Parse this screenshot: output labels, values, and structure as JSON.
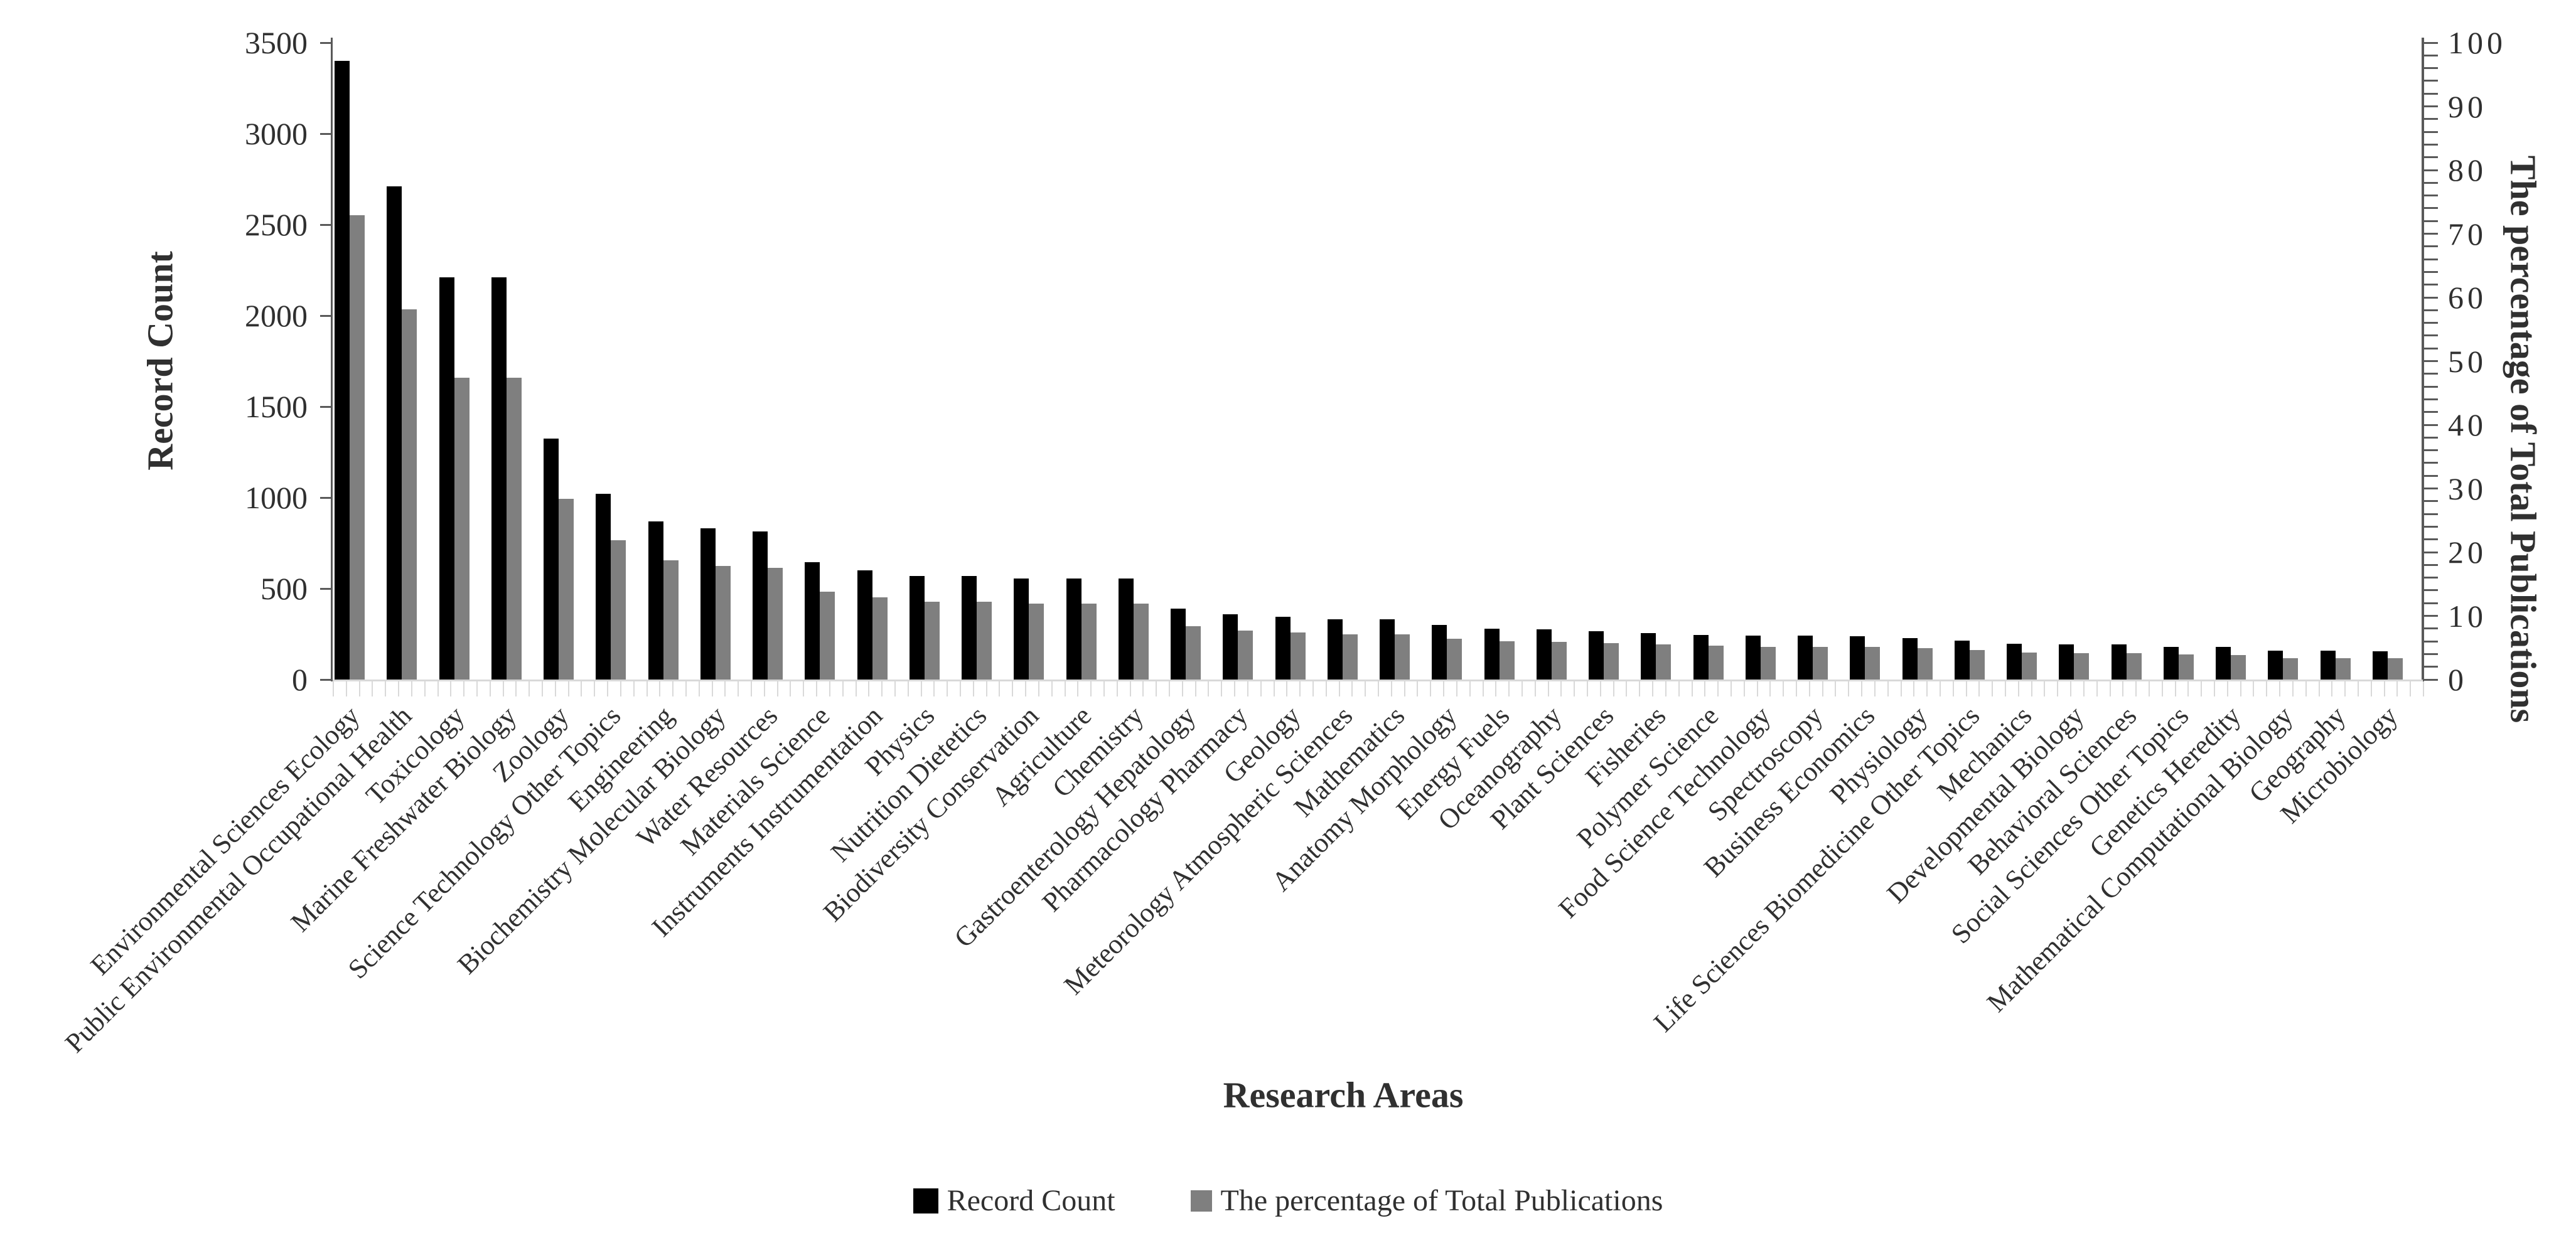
{
  "colors": {
    "record_count_bar": "#000000",
    "percentage_bar": "#7f7f7f",
    "axis": "#595959",
    "baseline": "#d9d9d9",
    "text": "#303030"
  },
  "chart_data": {
    "type": "bar",
    "title": "",
    "xlabel": "Research Areas",
    "ylabel_left": "Record Count",
    "ylabel_right": "The percentage of Total Publications",
    "left_axis": {
      "min": 0,
      "max": 3500,
      "step": 500,
      "tick_labels": [
        "0",
        "500",
        "1000",
        "1500",
        "2000",
        "2500",
        "3000",
        "3500"
      ]
    },
    "right_axis": {
      "min": 0,
      "max": 100,
      "step": 10,
      "minor_step": 2,
      "tick_labels": [
        "0",
        "10",
        "20",
        "30",
        "40",
        "50",
        "60",
        "70",
        "80",
        "90",
        "100"
      ]
    },
    "grid": false,
    "legend_position": "bottom",
    "categories": [
      "Environmental Sciences Ecology",
      "Public Environmental Occupational Health",
      "Toxicology",
      "Marine Freshwater Biology",
      "Zoology",
      "Science Technology Other Topics",
      "Engineering",
      "Biochemistry Molecular Biology",
      "Water Resources",
      "Materials Science",
      "Instruments Instrumentation",
      "Physics",
      "Nutrition Dietetics",
      "Biodiversity Conservation",
      "Agriculture",
      "Chemistry",
      "Gastroenterology Hepatology",
      "Pharmacology Pharmacy",
      "Geology",
      "Meteorology Atmospheric Sciences",
      "Mathematics",
      "Anatomy Morphology",
      "Energy Fuels",
      "Oceanography",
      "Plant Sciences",
      "Fisheries",
      "Polymer Science",
      "Food Science Technology",
      "Spectroscopy",
      "Business Economics",
      "Physiology",
      "Life Sciences Biomedicine Other Topics",
      "Mechanics",
      "Developmental Biology",
      "Behavioral Sciences",
      "Social Sciences Other Topics",
      "Genetics Heredity",
      "Mathematical Computational Biology",
      "Geography",
      "Microbiology"
    ],
    "series": [
      {
        "name": "Record Count",
        "axis": "left",
        "color": "#000000",
        "values": [
          3400,
          2710,
          2210,
          2210,
          1325,
          1020,
          870,
          830,
          815,
          645,
          600,
          570,
          570,
          555,
          555,
          555,
          390,
          360,
          345,
          330,
          330,
          300,
          280,
          275,
          265,
          255,
          245,
          240,
          240,
          238,
          228,
          215,
          195,
          193,
          193,
          180,
          178,
          160,
          158,
          157
        ]
      },
      {
        "name": "The percentage of Total Publications",
        "axis": "right",
        "color": "#7f7f7f",
        "values": [
          72.9,
          58.1,
          47.4,
          47.4,
          28.4,
          21.9,
          18.7,
          17.8,
          17.5,
          13.8,
          12.9,
          12.2,
          12.2,
          11.9,
          11.9,
          11.9,
          8.4,
          7.7,
          7.4,
          7.1,
          7.1,
          6.4,
          6.0,
          5.9,
          5.7,
          5.5,
          5.3,
          5.1,
          5.1,
          5.1,
          4.9,
          4.6,
          4.2,
          4.1,
          4.1,
          3.9,
          3.8,
          3.4,
          3.4,
          3.4
        ]
      }
    ]
  }
}
